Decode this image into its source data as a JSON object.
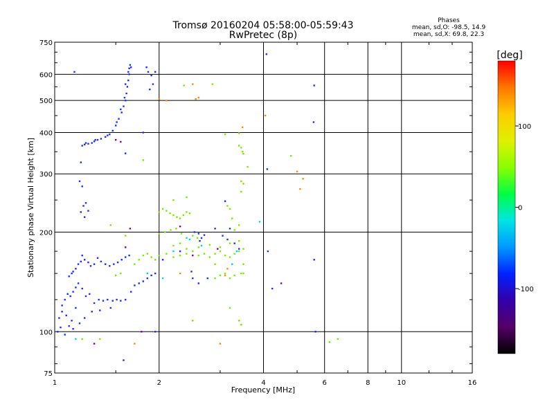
{
  "chart_data": {
    "type": "scatter",
    "title": "Tromsø 20160204 05:58:00-05:59:43",
    "subtitle": "RwPretec (8p)",
    "stats": {
      "heading": "Phases",
      "line1": "mean, sd,O:  -98.5, 14.9",
      "line2": "mean, sd,X:  69.8, 22.3"
    },
    "xlabel": "Frequency [MHz]",
    "ylabel": "Stationary phase Virtual Height [km]",
    "x_scale": "log",
    "y_scale": "log",
    "xlim": [
      1,
      16
    ],
    "ylim": [
      75,
      750
    ],
    "x_ticks": [
      1,
      2,
      4,
      6,
      8,
      10,
      16
    ],
    "y_ticks": [
      75,
      100,
      200,
      300,
      400,
      500,
      600,
      750
    ],
    "grid": true,
    "colorbar": {
      "label": "[deg]",
      "range": [
        -180,
        180
      ],
      "ticks": [
        100,
        0,
        -100
      ],
      "colors": [
        "#000000",
        "#550066",
        "#3300aa",
        "#0022ff",
        "#0099ff",
        "#00e5e5",
        "#00ff44",
        "#88ff00",
        "#e0f000",
        "#ffcc00",
        "#ff7700",
        "#ff0000"
      ]
    },
    "series": [
      {
        "points": [
          [
            1.2,
            365
          ],
          [
            1.22,
            368
          ],
          [
            1.25,
            370
          ],
          [
            1.28,
            372
          ],
          [
            1.3,
            376
          ],
          [
            1.33,
            380
          ],
          [
            1.36,
            383
          ],
          [
            1.4,
            388
          ],
          [
            1.44,
            395
          ],
          [
            1.47,
            405
          ],
          [
            1.5,
            420
          ],
          [
            1.53,
            440
          ],
          [
            1.56,
            460
          ],
          [
            1.58,
            480
          ],
          [
            1.6,
            500
          ],
          [
            1.61,
            525
          ],
          [
            1.62,
            550
          ],
          [
            1.63,
            575
          ],
          [
            1.64,
            600
          ],
          [
            1.64,
            625
          ],
          [
            1.65,
            640
          ],
          [
            1.19,
            325
          ],
          [
            1.23,
            372
          ],
          [
            1.31,
            380
          ],
          [
            1.42,
            392
          ],
          [
            1.51,
            430
          ],
          [
            1.55,
            470
          ],
          [
            1.59,
            510
          ],
          [
            1.6,
            560
          ],
          [
            1.63,
            610
          ],
          [
            1.66,
            630
          ],
          [
            1.14,
            610
          ],
          [
            1.84,
            630
          ],
          [
            1.86,
            610
          ],
          [
            1.9,
            595
          ],
          [
            1.92,
            560
          ],
          [
            1.88,
            540
          ],
          [
            1.95,
            610
          ],
          [
            1.18,
            285
          ],
          [
            1.2,
            275
          ],
          [
            1.19,
            230
          ],
          [
            1.21,
            240
          ],
          [
            1.23,
            245
          ],
          [
            1.25,
            232
          ],
          [
            1.22,
            222
          ],
          [
            1.6,
            346
          ],
          [
            1.8,
            400
          ],
          [
            2.53,
            200
          ],
          [
            2.6,
            198
          ],
          [
            2.65,
            192
          ],
          [
            2.7,
            196
          ],
          [
            2.9,
            205
          ],
          [
            3.05,
            195
          ],
          [
            3.15,
            190
          ],
          [
            3.2,
            205
          ],
          [
            3.3,
            185
          ],
          [
            3.1,
            248
          ],
          [
            4.1,
            310
          ],
          [
            4.08,
            690
          ],
          [
            5.6,
            555
          ],
          [
            5.58,
            430
          ],
          [
            1.1,
            147
          ],
          [
            1.12,
            150
          ],
          [
            1.13,
            152
          ],
          [
            1.15,
            155
          ],
          [
            1.17,
            160
          ],
          [
            1.19,
            163
          ],
          [
            1.2,
            170
          ],
          [
            1.22,
            165
          ],
          [
            1.25,
            162
          ],
          [
            1.27,
            158
          ],
          [
            1.3,
            160
          ],
          [
            1.33,
            167
          ],
          [
            1.36,
            163
          ],
          [
            1.4,
            160
          ],
          [
            1.44,
            158
          ],
          [
            1.48,
            160
          ],
          [
            1.52,
            162
          ],
          [
            1.56,
            165
          ],
          [
            1.6,
            168
          ],
          [
            1.64,
            170
          ],
          [
            1.05,
            120
          ],
          [
            1.07,
            125
          ],
          [
            1.09,
            130
          ],
          [
            1.11,
            128
          ],
          [
            1.13,
            132
          ],
          [
            1.15,
            136
          ],
          [
            1.17,
            140
          ],
          [
            1.2,
            135
          ],
          [
            1.23,
            128
          ],
          [
            1.26,
            130
          ],
          [
            1.3,
            122
          ],
          [
            1.34,
            125
          ],
          [
            1.38,
            124
          ],
          [
            1.42,
            125
          ],
          [
            1.47,
            124
          ],
          [
            1.51,
            125
          ],
          [
            1.55,
            124
          ],
          [
            1.6,
            125
          ],
          [
            1.66,
            132
          ],
          [
            1.7,
            138
          ],
          [
            1.75,
            140
          ],
          [
            1.8,
            142
          ],
          [
            1.85,
            145
          ],
          [
            1.9,
            148
          ],
          [
            1.95,
            150
          ],
          [
            1.03,
            110
          ],
          [
            1.05,
            115
          ],
          [
            1.08,
            112
          ],
          [
            1.12,
            108
          ],
          [
            1.15,
            118
          ],
          [
            1.02,
            100
          ],
          [
            1.04,
            103
          ],
          [
            1.07,
            98
          ],
          [
            1.1,
            104
          ],
          [
            1.13,
            102
          ],
          [
            1.18,
            106
          ],
          [
            1.22,
            110
          ],
          [
            1.28,
            115
          ],
          [
            1.35,
            116
          ],
          [
            1.45,
            118
          ],
          [
            1.58,
            82
          ],
          [
            2.5,
            145
          ],
          [
            2.6,
            140
          ],
          [
            2.05,
            165
          ],
          [
            2.3,
            175
          ],
          [
            2.62,
            188
          ],
          [
            3.4,
            178
          ],
          [
            4.12,
            175
          ],
          [
            4.24,
            135
          ],
          [
            5.6,
            165
          ],
          [
            5.65,
            100
          ],
          [
            1.95,
            100
          ],
          [
            2.48,
            152
          ],
          [
            2.76,
            145
          ]
        ]
      },
      {
        "points": [
          [
            2.0,
            230
          ],
          [
            2.05,
            235
          ],
          [
            2.1,
            232
          ],
          [
            2.15,
            228
          ],
          [
            2.2,
            225
          ],
          [
            2.25,
            222
          ],
          [
            2.3,
            220
          ],
          [
            2.35,
            225
          ],
          [
            2.4,
            230
          ],
          [
            2.45,
            228
          ],
          [
            2.0,
            198
          ],
          [
            2.08,
            200
          ],
          [
            2.16,
            203
          ],
          [
            2.24,
            205
          ],
          [
            2.32,
            198
          ],
          [
            2.5,
            195
          ],
          [
            2.58,
            192
          ],
          [
            1.75,
            165
          ],
          [
            1.8,
            170
          ],
          [
            1.85,
            172
          ],
          [
            1.9,
            168
          ],
          [
            1.95,
            165
          ],
          [
            2.0,
            170
          ],
          [
            2.1,
            172
          ],
          [
            2.2,
            168
          ],
          [
            2.3,
            170
          ],
          [
            2.4,
            172
          ],
          [
            2.5,
            175
          ],
          [
            2.6,
            170
          ],
          [
            2.7,
            172
          ],
          [
            2.8,
            168
          ],
          [
            2.9,
            172
          ],
          [
            3.0,
            175
          ],
          [
            3.1,
            170
          ],
          [
            3.2,
            168
          ],
          [
            3.3,
            172
          ],
          [
            3.4,
            175
          ],
          [
            3.5,
            178
          ],
          [
            2.2,
            182
          ],
          [
            2.3,
            185
          ],
          [
            2.4,
            178
          ],
          [
            2.6,
            180
          ],
          [
            2.8,
            183
          ],
          [
            3.0,
            180
          ],
          [
            3.2,
            185
          ],
          [
            3.4,
            188
          ],
          [
            2.9,
            145
          ],
          [
            3.0,
            148
          ],
          [
            3.1,
            150
          ],
          [
            3.2,
            145
          ],
          [
            3.3,
            148
          ],
          [
            3.45,
            150
          ],
          [
            3.5,
            150
          ],
          [
            3.45,
            360
          ],
          [
            3.48,
            350
          ],
          [
            3.5,
            345
          ],
          [
            3.4,
            365
          ],
          [
            3.45,
            285
          ],
          [
            3.5,
            280
          ],
          [
            3.45,
            265
          ],
          [
            3.15,
            240
          ],
          [
            3.2,
            235
          ],
          [
            3.25,
            220
          ],
          [
            3.4,
            210
          ],
          [
            1.5,
            148
          ],
          [
            1.55,
            150
          ],
          [
            2.36,
            555
          ],
          [
            2.85,
            560
          ],
          [
            1.8,
            330
          ],
          [
            2.5,
            108
          ],
          [
            3.4,
            108
          ],
          [
            3.45,
            105
          ],
          [
            6.2,
            93
          ],
          [
            6.55,
            95
          ],
          [
            1.2,
            95
          ],
          [
            1.35,
            95
          ],
          [
            1.7,
            160
          ],
          [
            2.9,
            160
          ],
          [
            3.5,
            160
          ],
          [
            3.1,
            395
          ],
          [
            3.4,
            398
          ],
          [
            3.2,
            118
          ],
          [
            4.8,
            340
          ],
          [
            3.3,
            203
          ],
          [
            2.4,
            255
          ],
          [
            2.2,
            250
          ],
          [
            3.6,
            315
          ],
          [
            1.45,
            210
          ],
          [
            1.6,
            195
          ]
        ]
      },
      {
        "points": [
          [
            2.0,
            505
          ],
          [
            2.1,
            500
          ],
          [
            2.5,
            560
          ],
          [
            2.55,
            505
          ],
          [
            2.6,
            510
          ],
          [
            4.05,
            450
          ],
          [
            5.1,
            270
          ],
          [
            5.2,
            290
          ],
          [
            5.0,
            305
          ],
          [
            3.1,
            148
          ],
          [
            3.15,
            155
          ],
          [
            3.48,
            415
          ],
          [
            2.3,
            150
          ],
          [
            1.7,
            92
          ],
          [
            3.0,
            92
          ]
        ]
      },
      {
        "points": [
          [
            1.15,
            95
          ],
          [
            2.4,
            192
          ],
          [
            2.45,
            190
          ],
          [
            3.9,
            215
          ],
          [
            2.2,
            175
          ],
          [
            1.85,
            150
          ],
          [
            2.05,
            145
          ],
          [
            2.65,
            182
          ],
          [
            3.25,
            160
          ],
          [
            3.35,
            175
          ]
        ]
      },
      {
        "points": [
          [
            1.5,
            380
          ],
          [
            1.55,
            375
          ],
          [
            1.6,
            180
          ],
          [
            1.65,
            205
          ],
          [
            2.3,
            208
          ],
          [
            2.5,
            170
          ],
          [
            2.95,
            178
          ],
          [
            4.5,
            140
          ],
          [
            1.3,
            92
          ],
          [
            1.78,
            100
          ]
        ]
      }
    ]
  }
}
